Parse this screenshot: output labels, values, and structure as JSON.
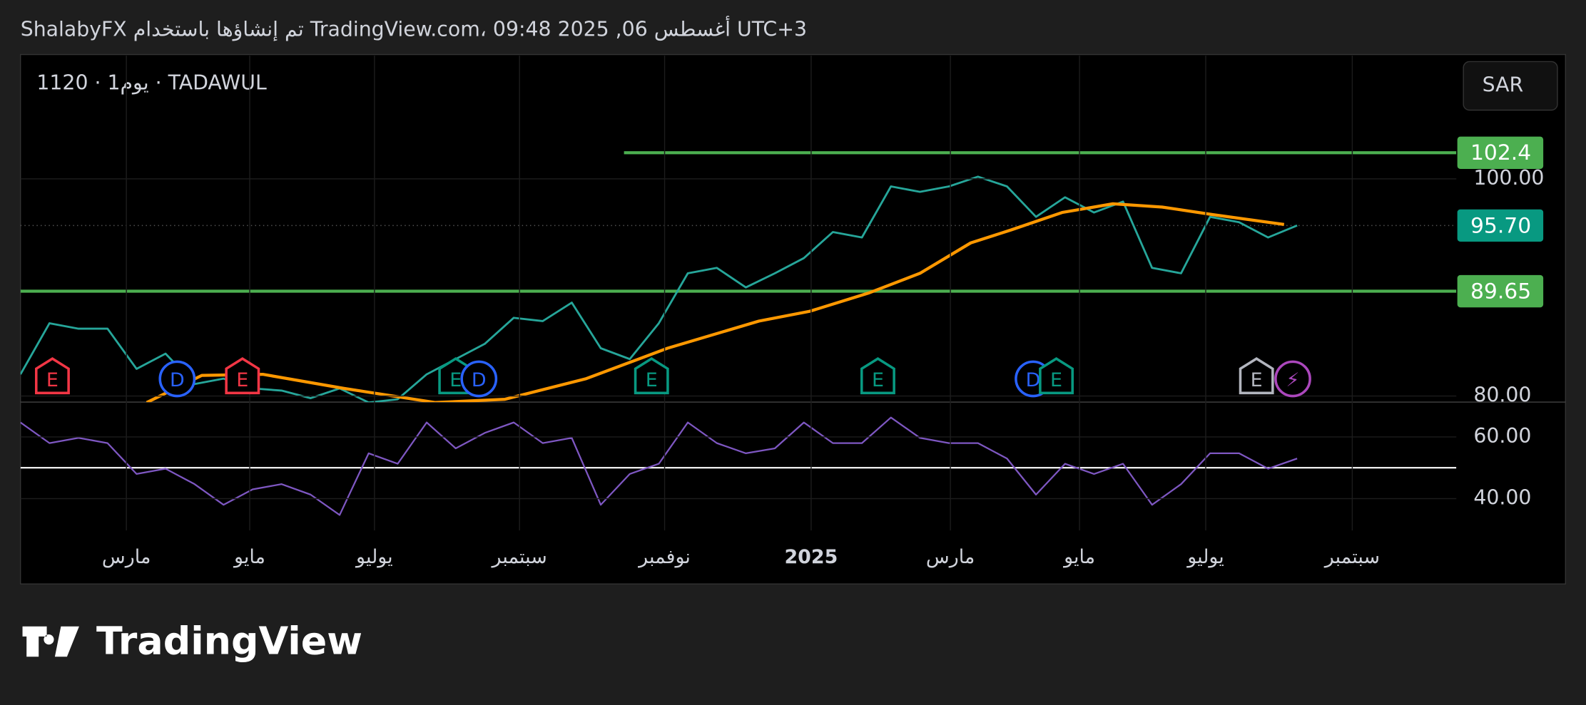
{
  "chart_data": {
    "type": "line",
    "title": "ShalabyFX تم إنشاؤها باستخدام TradingView.com، 09:48 2025 ,06 أغسطس UTC+3",
    "subtitle": "1120 · يوم1 · TADAWUL",
    "currency": "SAR",
    "watermark": "TradingView",
    "x": [
      0,
      2,
      4,
      6,
      8,
      10,
      12,
      14,
      16,
      18,
      20,
      22,
      24,
      26,
      28,
      30,
      32,
      34,
      36,
      38,
      40,
      42,
      44,
      46,
      48,
      50,
      52,
      54,
      56,
      58,
      60,
      62,
      64,
      66,
      68,
      70,
      72,
      74,
      76,
      78,
      80,
      82,
      84,
      86,
      88
    ],
    "series": [
      {
        "color": "#26a69a",
        "values": [
          82.0,
          86.7,
          86.2,
          86.2,
          82.5,
          83.9,
          81.1,
          81.6,
          80.7,
          80.5,
          79.8,
          80.7,
          79.4,
          79.7,
          82.0,
          83.4,
          84.8,
          87.2,
          86.9,
          88.6,
          84.4,
          83.4,
          86.7,
          91.3,
          91.8,
          90.0,
          91.3,
          92.7,
          95.1,
          94.6,
          99.3,
          98.8,
          99.3,
          100.2,
          99.3,
          96.5,
          98.3,
          96.9,
          97.9,
          91.8,
          91.3,
          96.5,
          96.0,
          94.6,
          95.7
        ]
      },
      {
        "color": "#ff9800",
        "x": [
          8.7,
          12.5,
          16.7,
          22.3,
          28.6,
          33.4,
          39,
          44.6,
          50.9,
          54.4,
          58.5,
          62,
          65.5,
          68.3,
          71.8,
          75.3,
          78.7,
          82.2,
          87.1
        ],
        "values": [
          79.4,
          81.9,
          82.0,
          80.7,
          79.4,
          79.7,
          81.6,
          84.4,
          86.9,
          87.8,
          89.5,
          91.3,
          94.1,
          95.3,
          96.9,
          97.7,
          97.4,
          96.7,
          95.8
        ]
      }
    ],
    "xlim": [
      0,
      106.5
    ],
    "ylim": [
      79.44,
      111.35
    ],
    "yticks": [
      {
        "value": 100,
        "label": "100.00"
      },
      {
        "value": 80,
        "label": "80.00"
      }
    ],
    "xticks": [
      {
        "value": 7.3,
        "label": "مارس"
      },
      {
        "value": 15.8,
        "label": "مايو"
      },
      {
        "value": 24.4,
        "label": "يوليو"
      },
      {
        "value": 34.4,
        "label": "سبتمبر"
      },
      {
        "value": 44.4,
        "label": "نوفمبر"
      },
      {
        "value": 54.5,
        "label": "2025"
      },
      {
        "value": 64.1,
        "label": "مارس"
      },
      {
        "value": 73.0,
        "label": "مايو"
      },
      {
        "value": 81.7,
        "label": "يوليو"
      },
      {
        "value": 91.8,
        "label": "سبتمبر"
      }
    ],
    "grid": true,
    "levels": [
      {
        "value": 102.4,
        "label": "102.4",
        "color": "#4caf50",
        "from": 41.6
      },
      {
        "value": 95.7,
        "label": "95.70",
        "color": "#089981",
        "dotted": true
      },
      {
        "value": 89.65,
        "label": "89.65",
        "color": "#4caf50"
      }
    ],
    "events": [
      {
        "label": "E",
        "x": 2.2,
        "color": "#f23645"
      },
      {
        "label": "D",
        "x": 10.8,
        "color": "#2962ff"
      },
      {
        "label": "E",
        "x": 15.3,
        "color": "#f23645"
      },
      {
        "label": "E",
        "x": 30.0,
        "color": "#089981"
      },
      {
        "label": "D",
        "x": 31.6,
        "color": "#2962ff"
      },
      {
        "label": "E",
        "x": 43.5,
        "color": "#089981"
      },
      {
        "label": "E",
        "x": 59.1,
        "color": "#089981"
      },
      {
        "label": "D",
        "x": 69.8,
        "color": "#2962ff"
      },
      {
        "label": "E",
        "x": 71.4,
        "color": "#089981"
      },
      {
        "label": "E",
        "x": 85.2,
        "color": "#b2b5be"
      },
      {
        "label": "⚡",
        "x": 87.7,
        "color": "#ab47bc"
      }
    ],
    "rsi": {
      "color": "#7e57c2",
      "values": [
        64.7,
        58,
        59.7,
        58,
        48,
        49.7,
        44.7,
        38,
        43,
        44.7,
        41.3,
        34.7,
        54.7,
        51.3,
        64.7,
        56.3,
        61.3,
        64.7,
        58,
        59.7,
        38,
        48,
        51.3,
        64.7,
        58,
        54.7,
        56.3,
        64.7,
        58,
        58,
        66.3,
        59.7,
        58,
        58,
        53,
        41.3,
        51.3,
        48,
        51.3,
        38,
        44.7,
        54.7,
        54.7,
        49.7,
        53
      ],
      "ylim": [
        29.7,
        71.3
      ],
      "yticks": [
        {
          "value": 60,
          "label": "60.00"
        },
        {
          "value": 40,
          "label": "40.00"
        }
      ],
      "hline": 50
    }
  }
}
